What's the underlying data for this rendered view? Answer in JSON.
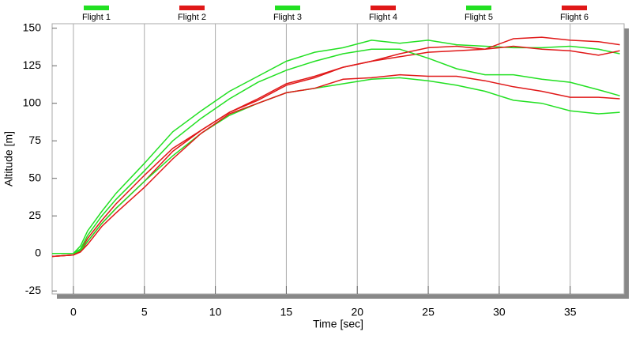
{
  "chart_data": {
    "type": "line",
    "x_label": "Time [sec]",
    "y_label": "Altitude [m]",
    "x": [
      -1.5,
      0,
      0.5,
      1,
      2,
      3,
      5,
      7,
      9,
      11,
      13,
      15,
      17,
      19,
      21,
      23,
      25,
      27,
      29,
      31,
      33,
      35,
      37,
      38.5
    ],
    "series": [
      {
        "name": "Flight 1",
        "color": "#22e022",
        "values": [
          0,
          0,
          5,
          15,
          28,
          40,
          60,
          81,
          95,
          108,
          118,
          128,
          134,
          137,
          142,
          140,
          142,
          139,
          138,
          137,
          137,
          138,
          136,
          133
        ]
      },
      {
        "name": "Flight 2",
        "color": "#e01818",
        "values": [
          -2,
          -1,
          2,
          10,
          22,
          33,
          52,
          70,
          82,
          94,
          103,
          113,
          118,
          124,
          128,
          131,
          134,
          135,
          136,
          143,
          144,
          142,
          141,
          139
        ]
      },
      {
        "name": "Flight 3",
        "color": "#22e022",
        "values": [
          0,
          0,
          3,
          12,
          25,
          36,
          55,
          75,
          90,
          103,
          114,
          122,
          128,
          133,
          136,
          136,
          130,
          123,
          119,
          119,
          116,
          114,
          109,
          105
        ]
      },
      {
        "name": "Flight 4",
        "color": "#e01818",
        "values": [
          -2,
          -1,
          1,
          8,
          20,
          30,
          48,
          68,
          82,
          94,
          102,
          112,
          117,
          124,
          128,
          133,
          137,
          138,
          136,
          138,
          136,
          135,
          132,
          135
        ]
      },
      {
        "name": "Flight 5",
        "color": "#22e022",
        "values": [
          0,
          0,
          2,
          8,
          20,
          30,
          48,
          65,
          80,
          92,
          100,
          107,
          110,
          113,
          116,
          117,
          115,
          112,
          108,
          102,
          100,
          95,
          93,
          94
        ]
      },
      {
        "name": "Flight 6",
        "color": "#e01818",
        "values": [
          -2,
          -1,
          1,
          6,
          18,
          27,
          44,
          63,
          80,
          93,
          100,
          107,
          110,
          116,
          117,
          119,
          118,
          118,
          115,
          111,
          108,
          104,
          104,
          103
        ]
      }
    ],
    "xlim": [
      -1.5,
      38.8
    ],
    "ylim": [
      -27,
      153
    ],
    "xticks": [
      0,
      5,
      10,
      15,
      20,
      25,
      30,
      35
    ],
    "yticks": [
      -25,
      0,
      25,
      50,
      75,
      100,
      125,
      150
    ],
    "grid": true
  }
}
